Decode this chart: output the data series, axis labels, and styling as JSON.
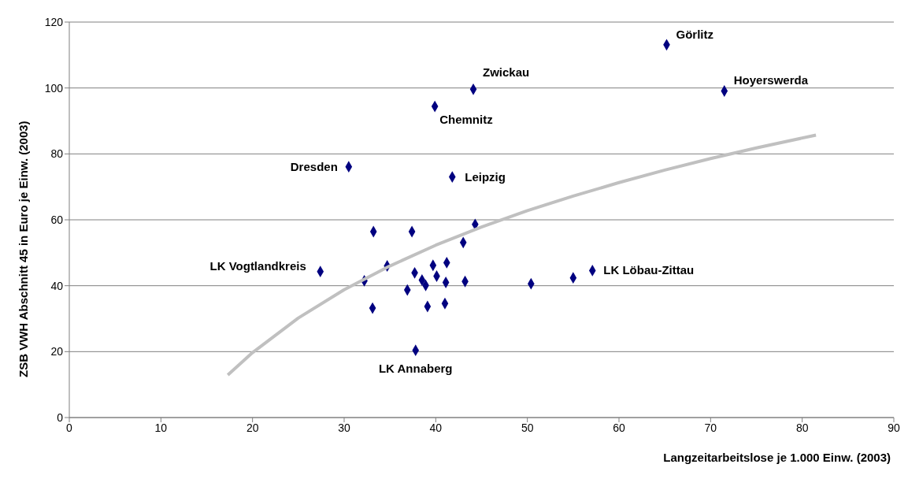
{
  "chart_data": {
    "type": "scatter",
    "xlabel": "Langzeitarbeitslose je 1.000 Einw. (2003)",
    "ylabel": "ZSB VWH Abschnitt 45 in Euro je Einw. (2003)",
    "xlim": [
      0,
      90
    ],
    "xticks": [
      0,
      10,
      20,
      30,
      40,
      50,
      60,
      70,
      80,
      90
    ],
    "ylim": [
      0,
      120
    ],
    "yticks": [
      0,
      20,
      40,
      60,
      80,
      100,
      120
    ],
    "grid": "y",
    "legend": false,
    "series": [
      {
        "color": "#000080",
        "marker": "diamond",
        "x": [
          65.2,
          71.5,
          44.1,
          39.9,
          30.5,
          41.8,
          44.3,
          33.2,
          37.4,
          43.0,
          34.7,
          39.7,
          41.2,
          37.7,
          40.1,
          38.5,
          38.9,
          41.1,
          43.2,
          32.2,
          36.9,
          27.4,
          33.1,
          39.1,
          41.0,
          37.8,
          50.4,
          55.0,
          57.1
        ],
        "values": [
          113.1,
          99.1,
          99.6,
          94.4,
          76.1,
          73.0,
          58.6,
          56.4,
          56.4,
          53.1,
          46.0,
          46.2,
          47.0,
          43.9,
          42.9,
          41.7,
          40.1,
          41.0,
          41.3,
          41.5,
          38.7,
          44.3,
          33.2,
          33.7,
          34.6,
          20.4,
          40.6,
          42.4,
          44.6
        ]
      },
      {
        "type": "line",
        "color": "#c0c0c0",
        "marker": "none",
        "line_style": "solid",
        "x": [
          17.3,
          20,
          25,
          30,
          35,
          40,
          45,
          50,
          55,
          60,
          65,
          70,
          75,
          81.5
        ],
        "values": [
          12.9,
          19.7,
          30.2,
          38.8,
          46.0,
          52.3,
          57.8,
          62.8,
          67.2,
          71.3,
          75.1,
          78.6,
          81.8,
          85.7
        ]
      }
    ],
    "annotations": [
      {
        "text": "Görlitz",
        "x": 65.2,
        "y": 113.1
      },
      {
        "text": "Hoyerswerda",
        "x": 71.5,
        "y": 99.1
      },
      {
        "text": "Zwickau",
        "x": 44.1,
        "y": 99.6
      },
      {
        "text": "Chemnitz",
        "x": 39.9,
        "y": 94.4
      },
      {
        "text": "Dresden",
        "x": 30.5,
        "y": 76.1
      },
      {
        "text": "Leipzig",
        "x": 41.8,
        "y": 73.0
      },
      {
        "text": "LK Vogtlandkreis",
        "x": 27.4,
        "y": 44.3
      },
      {
        "text": "LK Löbau-Zittau",
        "x": 57.1,
        "y": 44.6
      },
      {
        "text": "LK Annaberg",
        "x": 37.8,
        "y": 20.4
      }
    ]
  }
}
